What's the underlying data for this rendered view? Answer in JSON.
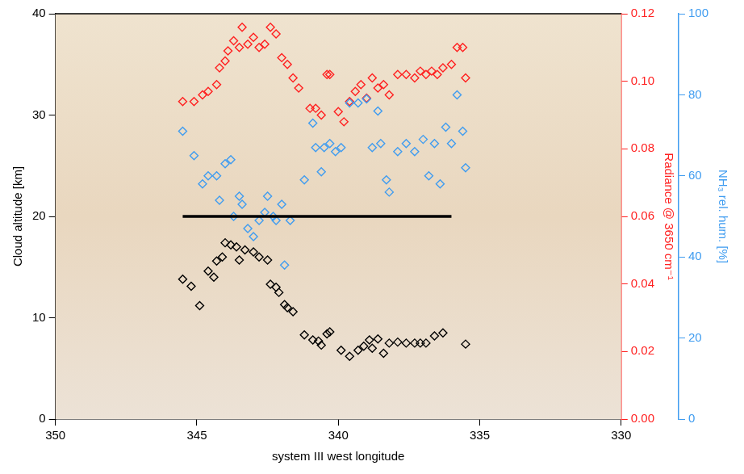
{
  "chart_data": {
    "type": "scatter",
    "xlabel": "system III west longitude",
    "ylabel": "Cloud altitude [km]",
    "y2label": "NH₃ rel. hum. [%]",
    "y3label": "Radiance @ 3650 cm⁻¹",
    "xlim": [
      350,
      330
    ],
    "xticks": [
      350,
      345,
      340,
      335,
      330
    ],
    "ylim": [
      0,
      40
    ],
    "yticks": [
      0,
      10,
      20,
      30,
      40
    ],
    "y2lim": [
      0,
      100
    ],
    "y2ticks": [
      0,
      20,
      40,
      60,
      80,
      100
    ],
    "y3lim": [
      0,
      0.12
    ],
    "y3ticks": [
      {
        "value": 0,
        "label": "0.00"
      },
      {
        "value": 0.02,
        "label": "0.02"
      },
      {
        "value": 0.04,
        "label": "0.04"
      },
      {
        "value": 0.06,
        "label": "0.06"
      },
      {
        "value": 0.08,
        "label": "0.08"
      },
      {
        "value": 0.1,
        "label": "0.10"
      },
      {
        "value": 0.12,
        "label": "0.12"
      }
    ],
    "grid": false,
    "series": [
      {
        "type": "scatter",
        "color": "#000000",
        "marker": "diamond",
        "axis": "y",
        "x": [
          345.5,
          345.2,
          344.9,
          344.6,
          344.4,
          344.3,
          344.1,
          344.0,
          343.8,
          343.6,
          343.5,
          343.3,
          343.0,
          342.8,
          342.5,
          342.4,
          342.2,
          342.1,
          341.9,
          341.8,
          341.6,
          341.2,
          340.9,
          340.7,
          340.6,
          340.4,
          340.3,
          339.9,
          339.6,
          339.3,
          339.1,
          338.9,
          338.8,
          338.6,
          338.4,
          338.2,
          337.9,
          337.6,
          337.3,
          337.1,
          336.9,
          336.6,
          336.3,
          335.5
        ],
        "values": [
          13.8,
          13.1,
          11.2,
          14.6,
          14.0,
          15.6,
          16.0,
          17.4,
          17.2,
          17.0,
          15.7,
          16.7,
          16.5,
          16.0,
          15.7,
          13.3,
          13.0,
          12.5,
          11.3,
          11.0,
          10.6,
          8.3,
          7.8,
          7.7,
          7.3,
          8.4,
          8.6,
          6.8,
          6.2,
          6.8,
          7.2,
          7.8,
          7.0,
          7.9,
          6.5,
          7.5,
          7.6,
          7.5,
          7.5,
          7.5,
          7.5,
          8.2,
          8.5,
          7.4
        ]
      },
      {
        "type": "scatter",
        "color": "#3f9cf0",
        "marker": "diamond",
        "axis": "y2",
        "x": [
          345.5,
          345.1,
          344.8,
          344.6,
          344.3,
          344.2,
          344.0,
          343.8,
          343.7,
          343.5,
          343.4,
          343.2,
          343.0,
          342.8,
          342.6,
          342.5,
          342.3,
          342.2,
          342.0,
          341.9,
          341.7,
          341.2,
          340.9,
          340.8,
          340.6,
          340.5,
          340.3,
          340.1,
          339.9,
          339.6,
          339.3,
          339.0,
          338.8,
          338.6,
          338.5,
          338.3,
          338.2,
          337.9,
          337.6,
          337.3,
          337.0,
          336.8,
          336.6,
          336.4,
          336.2,
          336.0,
          335.8,
          335.6,
          335.5
        ],
        "values": [
          71,
          65,
          58,
          60,
          60,
          54,
          63,
          64,
          50,
          55,
          53,
          47,
          45,
          49,
          51,
          55,
          50,
          49,
          53,
          38,
          49,
          59,
          73,
          67,
          61,
          67,
          68,
          66,
          67,
          78,
          78,
          79,
          67,
          76,
          68,
          59,
          56,
          66,
          68,
          66,
          69,
          60,
          68,
          58,
          72,
          68,
          80,
          71,
          62
        ]
      },
      {
        "type": "scatter",
        "color": "#ff2020",
        "marker": "diamond",
        "axis": "y3",
        "x": [
          345.5,
          345.1,
          344.8,
          344.6,
          344.3,
          344.2,
          344.0,
          343.9,
          343.7,
          343.5,
          343.4,
          343.2,
          343.0,
          342.8,
          342.6,
          342.4,
          342.2,
          342.0,
          341.8,
          341.6,
          341.4,
          341.0,
          340.8,
          340.6,
          340.4,
          340.3,
          340.0,
          339.8,
          339.6,
          339.4,
          339.2,
          339.0,
          338.8,
          338.6,
          338.4,
          338.2,
          337.9,
          337.6,
          337.3,
          337.1,
          336.9,
          336.7,
          336.5,
          336.3,
          336.0,
          335.8,
          335.6,
          335.5
        ],
        "values": [
          0.094,
          0.094,
          0.096,
          0.097,
          0.099,
          0.104,
          0.106,
          0.109,
          0.112,
          0.11,
          0.116,
          0.111,
          0.113,
          0.11,
          0.111,
          0.116,
          0.114,
          0.107,
          0.105,
          0.101,
          0.098,
          0.092,
          0.092,
          0.09,
          0.102,
          0.102,
          0.091,
          0.088,
          0.094,
          0.097,
          0.099,
          0.095,
          0.101,
          0.098,
          0.099,
          0.096,
          0.102,
          0.102,
          0.101,
          0.103,
          0.102,
          0.103,
          0.102,
          0.104,
          0.105,
          0.11,
          0.11,
          0.101
        ]
      },
      {
        "type": "line",
        "color": "#000000",
        "marker": "none",
        "line_style": "solid",
        "axis": "y",
        "x": [
          345.5,
          336.0
        ],
        "values": [
          20,
          20
        ]
      }
    ]
  }
}
